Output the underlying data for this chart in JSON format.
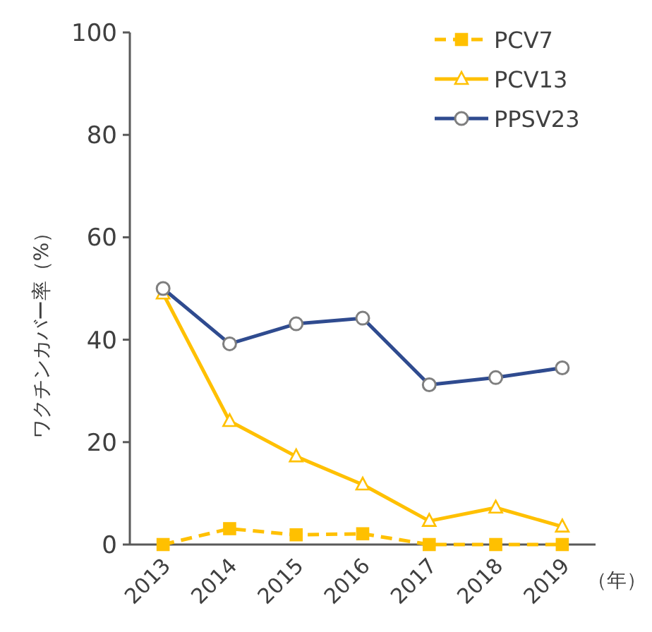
{
  "chart_data": {
    "type": "line",
    "ylabel": "ワクチンカバー率（%）",
    "xlabel": "（年）",
    "categories": [
      "2013",
      "2014",
      "2015",
      "2016",
      "2017",
      "2018",
      "2019"
    ],
    "ylim": [
      0,
      100
    ],
    "yticks": [
      0,
      20,
      40,
      60,
      80,
      100
    ],
    "grid": false,
    "legend": "top right",
    "series": [
      {
        "name": "PCV7",
        "color": "#ffc000",
        "marker": "square",
        "line_style": "dashed",
        "values": [
          0,
          3.1,
          1.9,
          2.1,
          0,
          0,
          0
        ]
      },
      {
        "name": "PCV13",
        "color": "#ffc000",
        "marker": "triangle",
        "line_style": "solid",
        "values": [
          49,
          24.1,
          17.2,
          11.7,
          4.6,
          7.2,
          3.5
        ]
      },
      {
        "name": "PPSV23",
        "color": "#2f4b8f",
        "marker": "circle",
        "line_style": "solid",
        "values": [
          50,
          39.2,
          43.1,
          44.2,
          31.2,
          32.6,
          34.5
        ]
      }
    ]
  }
}
